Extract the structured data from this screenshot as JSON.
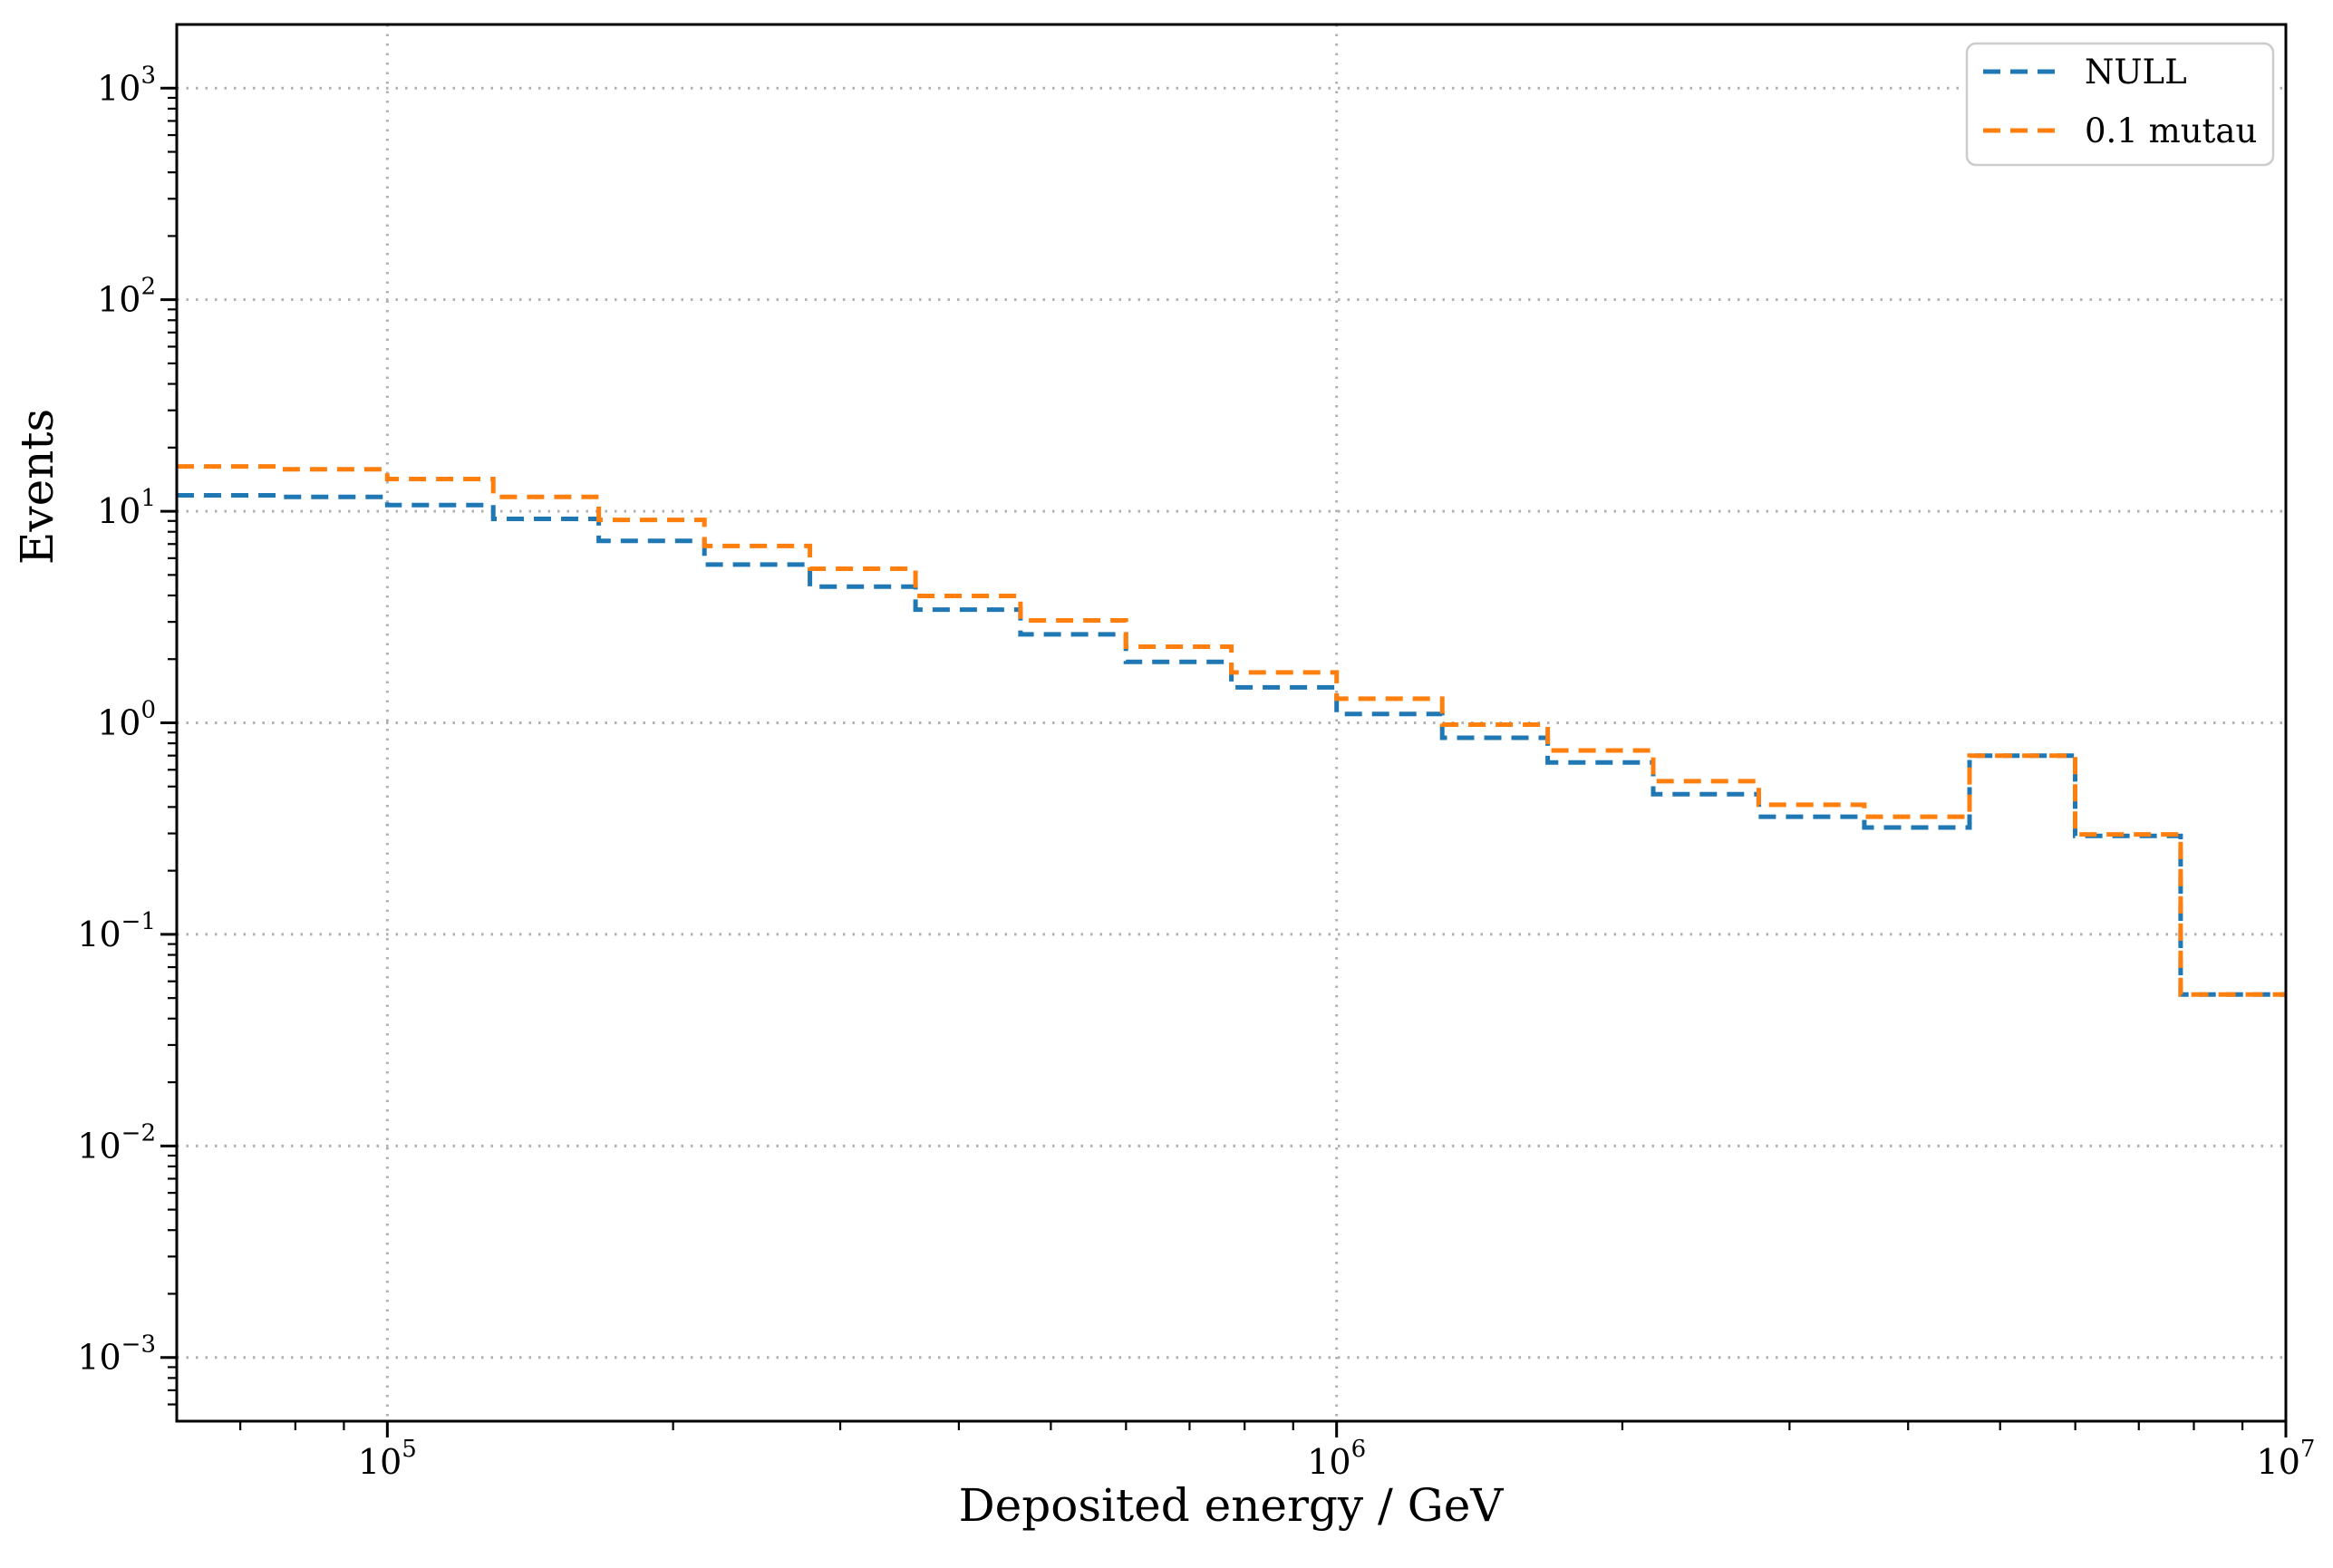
{
  "chart_data": {
    "type": "step-histogram",
    "title": "",
    "xlabel": "Deposited energy / GeV",
    "ylabel": "Events",
    "xscale": "log",
    "yscale": "log",
    "xlim": [
      60000,
      10000000
    ],
    "ylim": [
      0.0005,
      2000
    ],
    "grid": {
      "which": "major",
      "style": "dotted",
      "color": "#b0b0b0"
    },
    "legend": {
      "position": "upper right",
      "frame_color": "#cccccc"
    },
    "x_major_tick_exponents": [
      5,
      6,
      7
    ],
    "y_major_tick_exponents": [
      3,
      2,
      1,
      0,
      -1,
      -2,
      -3
    ],
    "bin_edges": [
      60000,
      77500,
      100000,
      129300,
      167000,
      215800,
      278700,
      360100,
      464500,
      599800,
      774800,
      1000000,
      1292100,
      1668900,
      2155600,
      2784300,
      3596500,
      4643200,
      5997900,
      7747600,
      10000000
    ],
    "series": [
      {
        "name": "NULL",
        "color": "#1f77b4",
        "linestyle": "dashed",
        "counts": [
          11.9,
          11.7,
          10.7,
          9.2,
          7.25,
          5.6,
          4.4,
          3.43,
          2.62,
          1.94,
          1.47,
          1.1,
          0.85,
          0.65,
          0.46,
          0.36,
          0.32,
          0.7,
          0.292,
          0.052
        ]
      },
      {
        "name": "0.1 mutau",
        "color": "#ff7f0e",
        "linestyle": "dashed",
        "counts": [
          16.3,
          15.8,
          14.2,
          11.7,
          9.1,
          6.85,
          5.35,
          3.98,
          3.05,
          2.29,
          1.73,
          1.3,
          0.98,
          0.74,
          0.53,
          0.41,
          0.36,
          0.7,
          0.297,
          0.052
        ]
      }
    ]
  }
}
